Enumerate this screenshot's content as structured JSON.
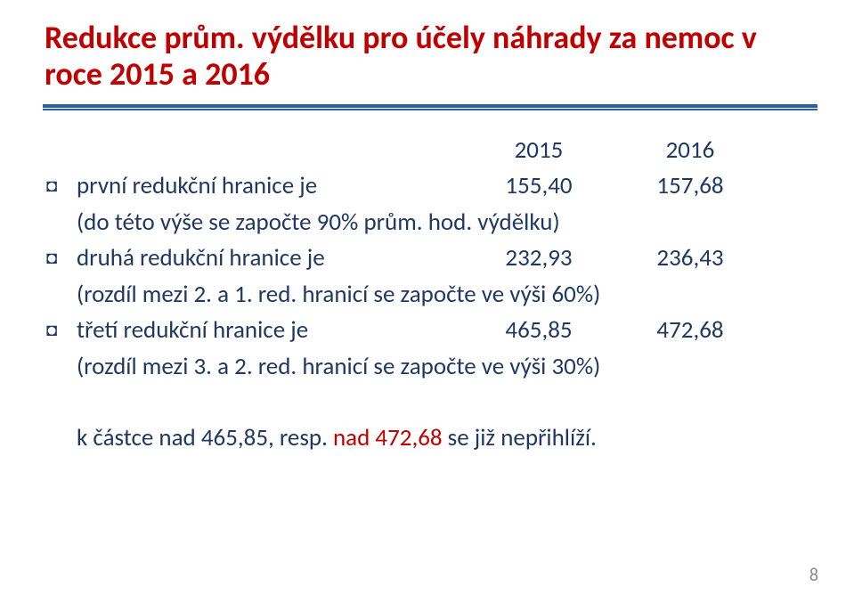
{
  "colors": {
    "title": "#C00000",
    "body": "#1F3864",
    "divider": "#2A5FA4",
    "accent": "#C00000",
    "pageNumber": "#8A8A8A",
    "background": "#ffffff"
  },
  "typography": {
    "title_fontsize_pt": 27,
    "body_fontsize_pt": 20,
    "pagenum_fontsize_pt": 15,
    "title_weight": "bold"
  },
  "title": "Redukce prům. výdělku pro účely náhrady za nemoc v roce 2015 a 2016",
  "years": {
    "col1": "2015",
    "col2": "2016"
  },
  "rows": [
    {
      "label": "první redukční hranice je",
      "v2015": "155,40",
      "v2016": "157,68",
      "note": "(do této výše se započte 90% prům. hod. výdělku)"
    },
    {
      "label": "druhá redukční hranice je",
      "v2015": "232,93",
      "v2016": "236,43",
      "note": "(rozdíl mezi 2. a 1. red. hranicí se započte ve výši 60%)"
    },
    {
      "label": "třetí redukční hranice je",
      "v2015": "465,85",
      "v2016": "472,68",
      "note": "(rozdíl mezi 3. a 2. red. hranicí se započte ve výši 30%)"
    }
  ],
  "footer": {
    "prefix": "k částce nad 465,85, resp. ",
    "accent": "nad 472,68",
    "suffix": "  se již nepřihlíží."
  },
  "pageNumber": "8"
}
